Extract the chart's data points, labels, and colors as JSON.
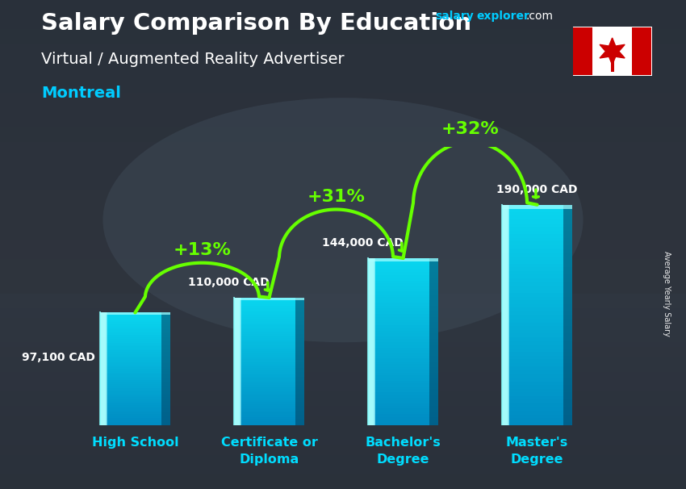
{
  "title_line1": "Salary Comparison By Education",
  "subtitle": "Virtual / Augmented Reality Advertiser",
  "location": "Montreal",
  "ylabel": "Average Yearly Salary",
  "categories": [
    "High School",
    "Certificate or\nDiploma",
    "Bachelor's\nDegree",
    "Master's\nDegree"
  ],
  "values": [
    97100,
    110000,
    144000,
    190000
  ],
  "value_labels": [
    "97,100 CAD",
    "110,000 CAD",
    "144,000 CAD",
    "190,000 CAD"
  ],
  "pct_changes": [
    "+13%",
    "+31%",
    "+32%"
  ],
  "arrow_color": "#66ff00",
  "pct_color": "#66ff00",
  "title_color": "#ffffff",
  "subtitle_color": "#ffffff",
  "location_color": "#00ccff",
  "value_color": "#ffffff",
  "category_color": "#00ddff",
  "figsize": [
    8.5,
    6.06
  ],
  "dpi": 100,
  "ylim": [
    0,
    240000
  ],
  "bar_width": 0.52,
  "salary_color": "#00ccff",
  "explorer_color": "#00ccff",
  "bar_face_color": "#00bcd4",
  "bar_highlight_color": "#80eeff",
  "bar_shadow_color": "#006688"
}
